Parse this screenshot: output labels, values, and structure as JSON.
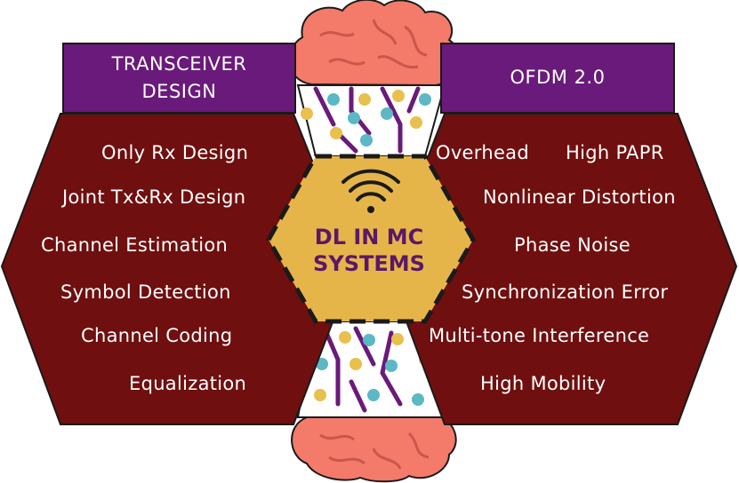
{
  "left_header": {
    "line1": "TRANSCEIVER",
    "line2": "DESIGN"
  },
  "right_header": {
    "label": "OFDM 2.0"
  },
  "center": {
    "line1": "DL IN MC",
    "line2": "SYSTEMS",
    "icon": "wifi-icon"
  },
  "left_items": [
    "Only Rx Design",
    "Joint Tx&Rx Design",
    "Channel Estimation",
    "Symbol Detection",
    "Channel Coding",
    "Equalization"
  ],
  "right_items": [
    "Overhead",
    "High PAPR",
    "Nonlinear Distortion",
    "Phase Noise",
    "Synchronization Error",
    "Multi-tone Interference",
    "High Mobility"
  ],
  "colors": {
    "hexagon_fill": "#700f0f",
    "header_fill": "#6a1a7a",
    "center_fill": "#e6b54a",
    "center_text": "#5b1768",
    "brain": "#f47a6a",
    "circuit_line": "#6a1a7a",
    "circuit_dot_yellow": "#e8c04d",
    "circuit_dot_teal": "#5bb8c4"
  }
}
